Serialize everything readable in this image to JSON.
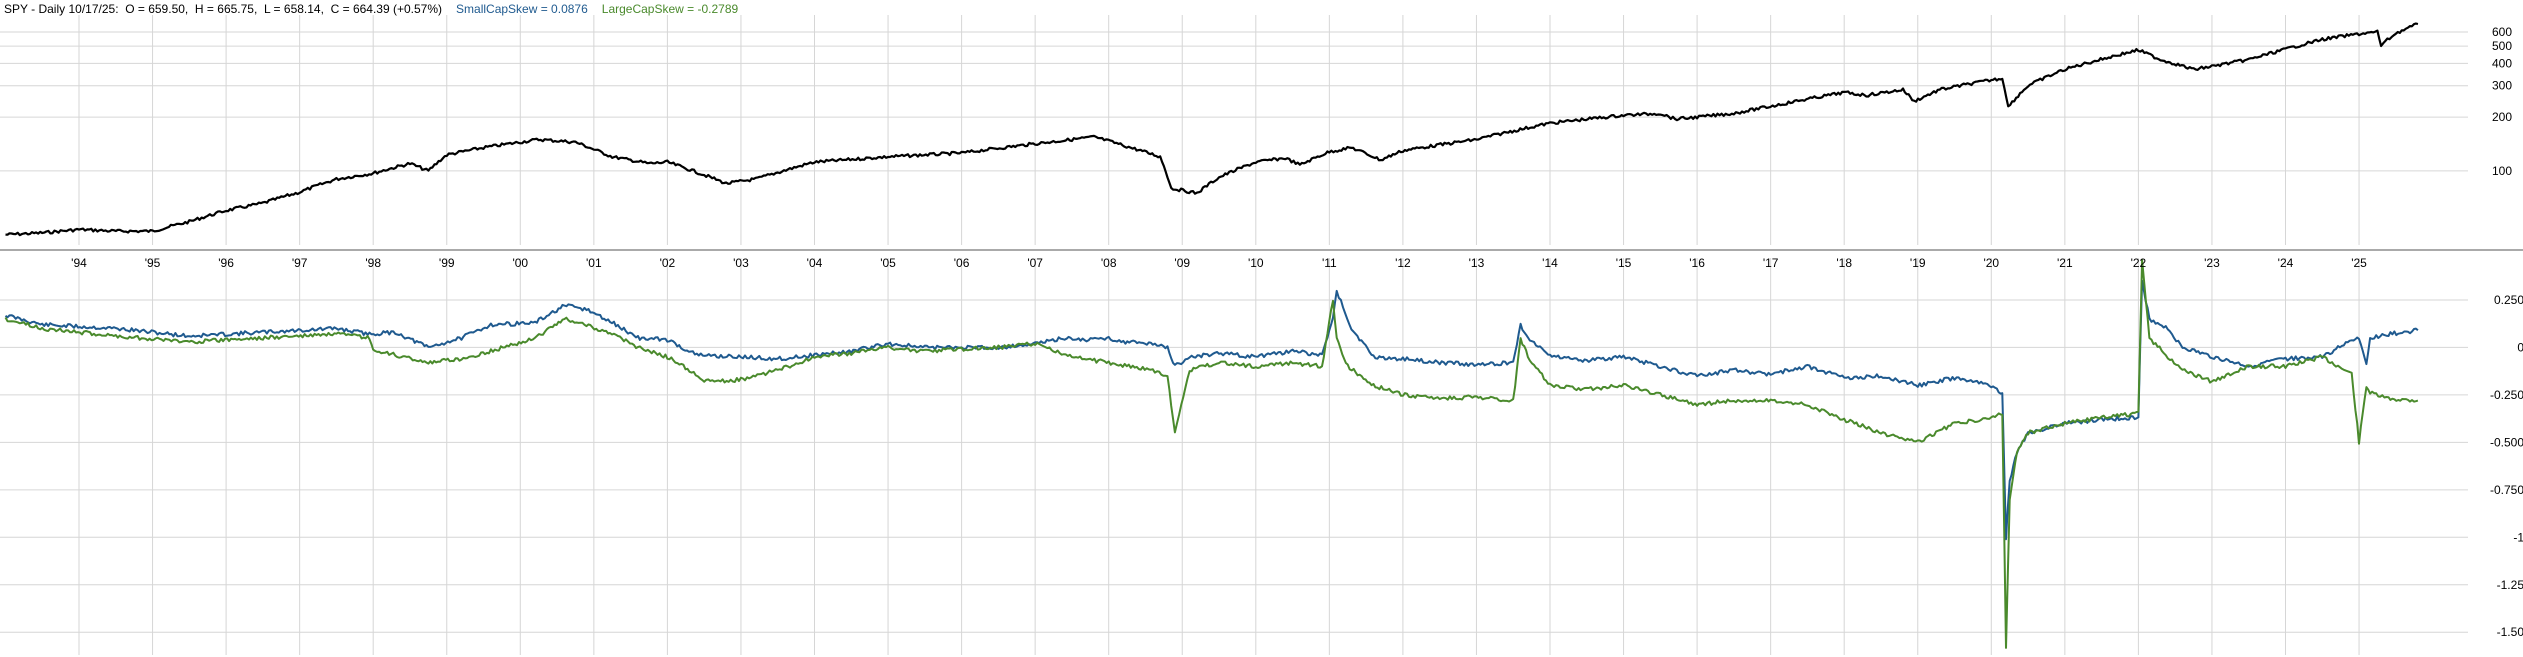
{
  "header": {
    "symbol_period": "SPY - Daily",
    "date": "10/17/25:",
    "open": "O = 659.50,",
    "high": "H = 665.75,",
    "low": "L = 658.14,",
    "close": "C = 664.39 (+0.57%)",
    "small_cap": "SmallCapSkew = 0.0876",
    "large_cap": "LargeCapSkew = -0.2789"
  },
  "colors": {
    "price": "#000000",
    "small_cap": "#1f5a8f",
    "large_cap": "#4a8a2c",
    "grid": "#d6d6d6",
    "divider": "#555555"
  },
  "chart_data": [
    {
      "type": "line",
      "title": "SPY - Daily",
      "y_scale": "log",
      "y_ticks": [
        100,
        200,
        300,
        400,
        500,
        600
      ],
      "y_tick_labels": [
        "100",
        "200",
        "300",
        "400",
        "500",
        "600"
      ],
      "x_tick_labels": [
        "'94",
        "'95",
        "'96",
        "'97",
        "'98",
        "'99",
        "'00",
        "'01",
        "'02",
        "'03",
        "'04",
        "'05",
        "'06",
        "'07",
        "'08",
        "'09",
        "'10",
        "'11",
        "'12",
        "'13",
        "'14",
        "'15",
        "'16",
        "'17",
        "'18",
        "'19",
        "'20",
        "'21",
        "'22",
        "'23",
        "'24",
        "'25"
      ],
      "series": [
        {
          "name": "SPY",
          "x": [
            1993.0,
            1993.5,
            1994.0,
            1994.5,
            1995.0,
            1995.5,
            1996.0,
            1996.5,
            1997.0,
            1997.5,
            1998.0,
            1998.5,
            1998.75,
            1999.0,
            1999.5,
            2000.0,
            2000.25,
            2000.75,
            2001.0,
            2001.25,
            2001.75,
            2002.0,
            2002.5,
            2002.8,
            2003.2,
            2003.5,
            2004.0,
            2005.0,
            2006.0,
            2007.0,
            2007.5,
            2007.8,
            2008.3,
            2008.7,
            2008.85,
            2009.2,
            2009.5,
            2010.0,
            2010.4,
            2010.6,
            2011.0,
            2011.3,
            2011.7,
            2012.0,
            2013.0,
            2014.0,
            2015.0,
            2015.5,
            2015.7,
            2016.0,
            2016.5,
            2017.0,
            2018.0,
            2018.3,
            2018.8,
            2018.95,
            2019.3,
            2020.0,
            2020.15,
            2020.23,
            2020.5,
            2021.0,
            2022.0,
            2022.3,
            2022.75,
            2023.0,
            2023.5,
            2024.0,
            2024.5,
            2025.0,
            2025.25,
            2025.3,
            2025.5,
            2025.8
          ],
          "values": [
            44,
            45,
            47,
            46,
            46,
            52,
            60,
            66,
            76,
            90,
            97,
            110,
            100,
            123,
            135,
            145,
            150,
            145,
            132,
            120,
            110,
            112,
            95,
            85,
            90,
            98,
            112,
            120,
            126,
            142,
            150,
            155,
            135,
            120,
            80,
            75,
            92,
            112,
            118,
            108,
            128,
            135,
            115,
            130,
            150,
            185,
            205,
            210,
            195,
            200,
            210,
            230,
            275,
            265,
            285,
            245,
            285,
            323,
            330,
            228,
            300,
            370,
            475,
            420,
            370,
            385,
            420,
            480,
            545,
            585,
            600,
            505,
            590,
            664
          ]
        }
      ]
    },
    {
      "type": "line",
      "y_ticks": [
        0.25,
        0,
        -0.25,
        -0.5,
        -0.75,
        -1,
        -1.25,
        -1.5
      ],
      "y_tick_labels": [
        "0.250",
        "0",
        "-0.250",
        "-0.500",
        "-0.750",
        "-1",
        "-1.25",
        "-1.50"
      ],
      "ylim": [
        -1.62,
        0.45
      ],
      "series": [
        {
          "name": "SmallCapSkew",
          "x": [
            1993.0,
            1993.5,
            1994.5,
            1995.5,
            1996.5,
            1997.5,
            1997.95,
            1998.3,
            1998.75,
            1999.2,
            1999.6,
            2000.2,
            2000.6,
            2000.9,
            2001.3,
            2001.6,
            2002.0,
            2002.4,
            2003.0,
            2003.5,
            2004.0,
            2004.5,
            2005.0,
            2005.5,
            2006.0,
            2006.5,
            2007.0,
            2007.4,
            2007.7,
            2008.0,
            2008.2,
            2008.6,
            2008.8,
            2008.9,
            2009.1,
            2009.5,
            2010.0,
            2010.5,
            2010.9,
            2011.05,
            2011.1,
            2011.3,
            2011.6,
            2012.0,
            2012.5,
            2013.0,
            2013.5,
            2013.6,
            2013.7,
            2014.0,
            2014.5,
            2015.0,
            2015.5,
            2016.0,
            2016.5,
            2017.0,
            2017.5,
            2018.0,
            2018.5,
            2019.0,
            2019.5,
            2020.0,
            2020.15,
            2020.2,
            2020.25,
            2020.35,
            2020.5,
            2021.0,
            2021.5,
            2021.95,
            2022.0,
            2022.05,
            2022.15,
            2022.4,
            2022.6,
            2023.0,
            2023.5,
            2024.0,
            2024.5,
            2024.9,
            2025.0,
            2025.1,
            2025.15,
            2025.4,
            2025.8
          ],
          "values": [
            0.17,
            0.12,
            0.1,
            0.06,
            0.08,
            0.1,
            0.07,
            0.08,
            0.0,
            0.05,
            0.12,
            0.13,
            0.22,
            0.2,
            0.12,
            0.05,
            0.04,
            -0.04,
            -0.05,
            -0.06,
            -0.04,
            -0.02,
            0.02,
            0.0,
            0.0,
            0.0,
            0.02,
            0.05,
            0.04,
            0.05,
            0.03,
            0.02,
            0.0,
            -0.1,
            -0.05,
            -0.03,
            -0.05,
            -0.02,
            -0.04,
            0.15,
            0.3,
            0.1,
            -0.05,
            -0.06,
            -0.08,
            -0.09,
            -0.08,
            0.12,
            0.05,
            -0.04,
            -0.07,
            -0.05,
            -0.1,
            -0.15,
            -0.12,
            -0.14,
            -0.1,
            -0.16,
            -0.15,
            -0.2,
            -0.16,
            -0.2,
            -0.25,
            -1.0,
            -0.7,
            -0.55,
            -0.45,
            -0.4,
            -0.38,
            -0.37,
            -0.36,
            0.35,
            0.15,
            0.1,
            0.0,
            -0.05,
            -0.1,
            -0.06,
            -0.05,
            0.04,
            0.05,
            -0.08,
            0.05,
            0.07,
            0.09
          ]
        },
        {
          "name": "LargeCapSkew",
          "x": [
            1993.0,
            1993.5,
            1994.5,
            1995.5,
            1996.5,
            1997.5,
            1997.95,
            1998.0,
            1998.3,
            1998.75,
            1999.2,
            1999.6,
            2000.2,
            2000.6,
            2000.9,
            2001.3,
            2001.6,
            2002.0,
            2002.3,
            2002.5,
            2003.0,
            2003.5,
            2004.0,
            2004.5,
            2005.0,
            2005.5,
            2006.0,
            2006.5,
            2007.0,
            2007.5,
            2008.0,
            2008.3,
            2008.6,
            2008.8,
            2008.9,
            2009.1,
            2009.5,
            2010.0,
            2010.5,
            2010.9,
            2011.05,
            2011.1,
            2011.25,
            2011.6,
            2012.0,
            2012.5,
            2013.0,
            2013.5,
            2013.6,
            2013.7,
            2014.0,
            2014.5,
            2015.0,
            2015.5,
            2016.0,
            2016.5,
            2017.0,
            2017.5,
            2018.0,
            2018.5,
            2019.0,
            2019.5,
            2020.0,
            2020.15,
            2020.2,
            2020.25,
            2020.35,
            2020.5,
            2021.0,
            2021.5,
            2021.95,
            2022.0,
            2022.05,
            2022.15,
            2022.4,
            2022.6,
            2023.0,
            2023.5,
            2024.0,
            2024.5,
            2024.9,
            2025.0,
            2025.1,
            2025.15,
            2025.4,
            2025.8
          ],
          "values": [
            0.15,
            0.1,
            0.06,
            0.03,
            0.05,
            0.07,
            0.05,
            -0.02,
            -0.04,
            -0.08,
            -0.06,
            -0.02,
            0.05,
            0.15,
            0.12,
            0.06,
            0.0,
            -0.05,
            -0.12,
            -0.18,
            -0.17,
            -0.12,
            -0.05,
            -0.03,
            0.0,
            -0.02,
            -0.01,
            0.0,
            0.02,
            -0.05,
            -0.08,
            -0.1,
            -0.12,
            -0.15,
            -0.45,
            -0.12,
            -0.08,
            -0.1,
            -0.08,
            -0.1,
            0.25,
            0.05,
            -0.1,
            -0.2,
            -0.25,
            -0.27,
            -0.26,
            -0.28,
            0.05,
            -0.05,
            -0.2,
            -0.22,
            -0.2,
            -0.25,
            -0.3,
            -0.28,
            -0.28,
            -0.3,
            -0.38,
            -0.45,
            -0.5,
            -0.4,
            -0.37,
            -0.35,
            -1.58,
            -0.8,
            -0.55,
            -0.45,
            -0.4,
            -0.37,
            -0.35,
            -0.34,
            0.45,
            0.05,
            -0.05,
            -0.12,
            -0.18,
            -0.1,
            -0.1,
            -0.05,
            -0.14,
            -0.5,
            -0.2,
            -0.24,
            -0.27,
            -0.28
          ]
        }
      ]
    }
  ]
}
